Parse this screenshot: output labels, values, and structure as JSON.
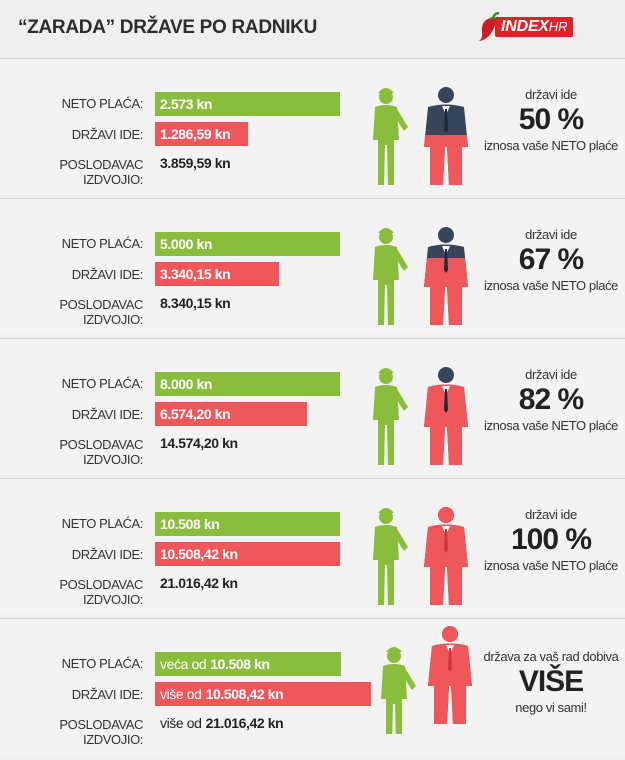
{
  "title": "“ZARADA” DRŽAVE PO RADNIKU",
  "logo": {
    "main": "INDEX",
    "suffix": "HR"
  },
  "colors": {
    "green": "#8bbd3c",
    "red": "#f0575a",
    "suit": "#37455a"
  },
  "labels": {
    "neto": "NETO PLAĆA:",
    "drzavi": "DRŽAVI IDE:",
    "poslodavac": "POSLODAVAC IZDVOJIO:"
  },
  "panels": [
    {
      "neto": "2.573 kn",
      "drzavi": "1.286,59 kn",
      "poslodavac": "3.859,59 kn",
      "side_top": "državi ide",
      "side_big": "50 %",
      "side_bottom": "iznosa vaše NETO plaće"
    },
    {
      "neto": "5.000 kn",
      "drzavi": "3.340,15 kn",
      "poslodavac": "8.340,15 kn",
      "side_top": "državi ide",
      "side_big": "67 %",
      "side_bottom": "iznosa vaše NETO plaće"
    },
    {
      "neto": "8.000 kn",
      "drzavi": "6.574,20 kn",
      "poslodavac": "14.574,20 kn",
      "side_top": "državi ide",
      "side_big": "82 %",
      "side_bottom": "iznosa vaše NETO plaće"
    },
    {
      "neto": "10.508 kn",
      "drzavi": "10.508,42 kn",
      "poslodavac": "21.016,42 kn",
      "side_top": "državi ide",
      "side_big": "100 %",
      "side_bottom": "iznosa vaše NETO plaće"
    },
    {
      "neto_prefix": "veća od",
      "neto": "10.508 kn",
      "drzavi_prefix": "više od",
      "drzavi": "10.508,42 kn",
      "poslodavac_prefix": "više od",
      "poslodavac": "21.016,42 kn",
      "side_top": "država za vaš rad dobiva",
      "side_big": "VIŠE",
      "side_bottom": "nego vi sami!"
    }
  ],
  "chart_data": {
    "type": "bar",
    "categories": [
      "2.573 kn",
      "5.000 kn",
      "8.000 kn",
      "10.508 kn",
      "> 10.508 kn"
    ],
    "series": [
      {
        "name": "NETO PLAĆA",
        "values": [
          2573,
          5000,
          8000,
          10508,
          10508
        ]
      },
      {
        "name": "DRŽAVI IDE",
        "values": [
          1286.59,
          3340.15,
          6574.2,
          10508.42,
          10508.42
        ]
      }
    ],
    "state_share_percent": [
      50,
      67,
      82,
      100,
      100
    ],
    "max_value": 10508
  }
}
